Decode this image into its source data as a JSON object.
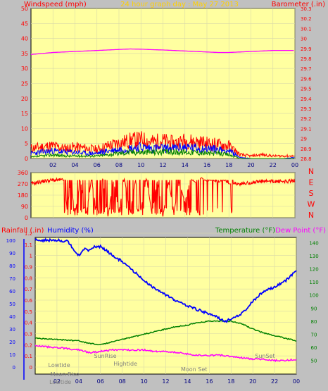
{
  "header": {
    "left_title": "Windspeed (mph)",
    "center_title": "24 hour graph day : May 27 2013",
    "right_title": "Barometer (.in)"
  },
  "colors": {
    "background": "#c0c0c0",
    "plot_bg": "#ffffa0",
    "grid": "#d8d8a8",
    "axis_text": "#ff0000",
    "wind_speed": "#ff0000",
    "wind_gust": "#0000ff",
    "wind_avg": "#008000",
    "barometer": "#ff00ff",
    "direction": "#ff0000",
    "humidity": "#0000ff",
    "temperature": "#008000",
    "dewpoint": "#ff00ff",
    "center_title": "#ffd000"
  },
  "chart_data": [
    {
      "type": "line",
      "title": "24 hour graph day : May 27 2013",
      "xlabel": "",
      "x_tick_labels": [
        "02",
        "04",
        "06",
        "08",
        "10",
        "12",
        "14",
        "16",
        "18",
        "20",
        "22",
        "00"
      ],
      "xlim": [
        0,
        24
      ],
      "y_left": {
        "label": "Windspeed (mph)",
        "ylim": [
          0,
          50
        ],
        "ticks": [
          "0",
          "5",
          "10",
          "15",
          "20",
          "25",
          "30",
          "35",
          "40",
          "45",
          "50"
        ]
      },
      "y_right": {
        "label": "Barometer (.in)",
        "ylim": [
          28.8,
          30.3
        ],
        "ticks": [
          "28.8",
          "28.9",
          "29",
          "29.1",
          "29.2",
          "29.3",
          "29.4",
          "29.5",
          "29.6",
          "29.7",
          "29.8",
          "29.9",
          "30",
          "30.1",
          "30.2",
          "30.3"
        ]
      },
      "series": [
        {
          "name": "Barometer",
          "axis": "right",
          "x": [
            0,
            1,
            2,
            3,
            4,
            5,
            6,
            7,
            8,
            9,
            10,
            11,
            12,
            13,
            14,
            15,
            16,
            17,
            18,
            19,
            20,
            21,
            22,
            23,
            24
          ],
          "values": [
            29.84,
            29.85,
            29.86,
            29.865,
            29.87,
            29.875,
            29.88,
            29.885,
            29.89,
            29.895,
            29.893,
            29.888,
            29.885,
            29.88,
            29.875,
            29.87,
            29.865,
            29.86,
            29.86,
            29.865,
            29.87,
            29.875,
            29.88,
            29.88,
            29.88
          ]
        },
        {
          "name": "Wind speed",
          "axis": "left",
          "x": [
            0,
            1,
            2,
            3,
            4,
            5,
            6,
            7,
            8,
            9,
            10,
            11,
            12,
            13,
            14,
            15,
            16,
            17,
            18,
            19,
            20,
            21,
            22,
            23,
            24
          ],
          "values": [
            4,
            4.5,
            5,
            4,
            4.5,
            4,
            3.5,
            5,
            6,
            7,
            7.5,
            6.5,
            7,
            6,
            7,
            6.5,
            6,
            5.5,
            5,
            1.5,
            1,
            1.5,
            1,
            1,
            1
          ]
        },
        {
          "name": "Wind gust",
          "axis": "left",
          "x": [
            0,
            1,
            2,
            3,
            4,
            5,
            6,
            7,
            8,
            9,
            10,
            11,
            12,
            13,
            14,
            15,
            16,
            17,
            18,
            19,
            20,
            21,
            22,
            23,
            24
          ],
          "values": [
            2,
            2.5,
            3,
            2.5,
            2.5,
            2,
            2,
            3,
            3.5,
            4,
            4.5,
            4,
            4,
            4,
            4.5,
            4,
            4,
            3.5,
            3,
            0.5,
            0,
            0,
            0,
            0,
            0.5
          ]
        },
        {
          "name": "Wind average",
          "axis": "left",
          "x": [
            0,
            1,
            2,
            3,
            4,
            5,
            6,
            7,
            8,
            9,
            10,
            11,
            12,
            13,
            14,
            15,
            16,
            17,
            18,
            19,
            20,
            21,
            22,
            23,
            24
          ],
          "values": [
            0.5,
            1,
            1.5,
            1,
            1,
            1,
            1,
            1.5,
            2,
            2.5,
            2.5,
            2.5,
            2.5,
            2.5,
            2.5,
            2.5,
            2,
            2,
            1.5,
            0,
            0,
            0,
            0,
            0,
            0
          ]
        }
      ]
    },
    {
      "type": "line",
      "title": "",
      "x_tick_labels": [],
      "xlim": [
        0,
        24
      ],
      "y_left": {
        "ylim": [
          0,
          360
        ],
        "ticks": [
          "0",
          "90",
          "180",
          "270",
          "360"
        ]
      },
      "y_right": {
        "ticks": [
          "N",
          "W",
          "S",
          "E",
          "N"
        ]
      },
      "series": [
        {
          "name": "Wind direction",
          "x": [
            0,
            1,
            2,
            3,
            3.3,
            3.6,
            4,
            4.5,
            5,
            5.5,
            6,
            6.5,
            7,
            7.5,
            8,
            8.5,
            9,
            9.5,
            10,
            10.5,
            11,
            11.5,
            12,
            12.5,
            13,
            13.5,
            14,
            14.5,
            15,
            15.5,
            16,
            16.5,
            17,
            17.5,
            18,
            19,
            20,
            21,
            22,
            23,
            23.5,
            24
          ],
          "values": [
            270,
            290,
            300,
            300,
            60,
            300,
            20,
            300,
            10,
            310,
            20,
            320,
            10,
            300,
            40,
            320,
            20,
            300,
            60,
            320,
            30,
            300,
            10,
            290,
            50,
            280,
            120,
            310,
            280,
            320,
            290,
            300,
            280,
            300,
            270,
            270,
            280,
            290,
            290,
            290,
            290,
            300
          ]
        }
      ]
    },
    {
      "type": "line",
      "title": "",
      "x_tick_labels": [
        "02",
        "04",
        "06",
        "08",
        "10",
        "12",
        "14",
        "16",
        "18",
        "20",
        "22",
        "00"
      ],
      "xlim": [
        0,
        24
      ],
      "y_left_outer": {
        "label": "Rainfall (.in)",
        "ylim": [
          0,
          100
        ],
        "ticks": [
          "0",
          "10",
          "20",
          "30",
          "40",
          "50",
          "60",
          "70",
          "80",
          "90",
          "100"
        ]
      },
      "y_left_inner": {
        "label": "Humidity (%)",
        "ylim": [
          0,
          1.2
        ],
        "ticks": [
          "0",
          "0.1",
          "0.2",
          "0.3",
          "0.4",
          "0.5",
          "0.6",
          "0.7",
          "0.8",
          "0.9",
          "1",
          "1.1",
          "1.2"
        ]
      },
      "y_right": {
        "label": "Temperature (°F)",
        "label2": "Dew Point (°F)",
        "ylim": [
          40,
          145
        ],
        "ticks": [
          "50",
          "60",
          "70",
          "80",
          "90",
          "100",
          "110",
          "120",
          "130",
          "140"
        ]
      },
      "annotations": [
        "Lowtide",
        "Moon Rise",
        "SunRise",
        "Hightide",
        "Moon Set",
        "SunSet",
        "Lowtide"
      ],
      "series": [
        {
          "name": "Humidity (%)",
          "axis": "left_outer",
          "x": [
            0,
            1,
            2,
            3,
            3.5,
            4,
            4.5,
            5,
            5.5,
            6,
            7,
            8,
            9,
            10,
            11,
            12,
            13,
            14,
            15,
            16,
            17,
            17.5,
            18,
            19,
            20,
            21,
            22,
            23,
            24
          ],
          "values": [
            100,
            100,
            100,
            99,
            93,
            88,
            93,
            92,
            95,
            95,
            89,
            83,
            76,
            68,
            62,
            57,
            52,
            48,
            45,
            42,
            38,
            36,
            38,
            42,
            52,
            60,
            63,
            68,
            76
          ]
        },
        {
          "name": "Temperature (°F)",
          "axis": "right",
          "x": [
            0,
            2,
            4,
            5,
            6,
            7,
            8,
            9,
            10,
            11,
            12,
            13,
            14,
            15,
            16,
            17,
            18,
            19,
            20,
            21,
            22,
            23,
            24
          ],
          "values": [
            67,
            66,
            65,
            63,
            62,
            64,
            66,
            68,
            70,
            72,
            74,
            76,
            77,
            79,
            80,
            80,
            80,
            78,
            74,
            71,
            69,
            67,
            65
          ]
        },
        {
          "name": "Dew Point (°F)",
          "axis": "right",
          "x": [
            0,
            2,
            4,
            5,
            6,
            7,
            8,
            9,
            10,
            11,
            12,
            13,
            14,
            15,
            16,
            17,
            18,
            19,
            20,
            21,
            22,
            23,
            24
          ],
          "values": [
            61,
            60,
            58,
            56,
            57,
            58,
            58,
            58,
            58,
            57,
            57,
            56,
            55,
            54,
            54,
            54,
            53,
            52,
            51,
            51,
            50,
            50,
            51
          ]
        }
      ]
    }
  ]
}
